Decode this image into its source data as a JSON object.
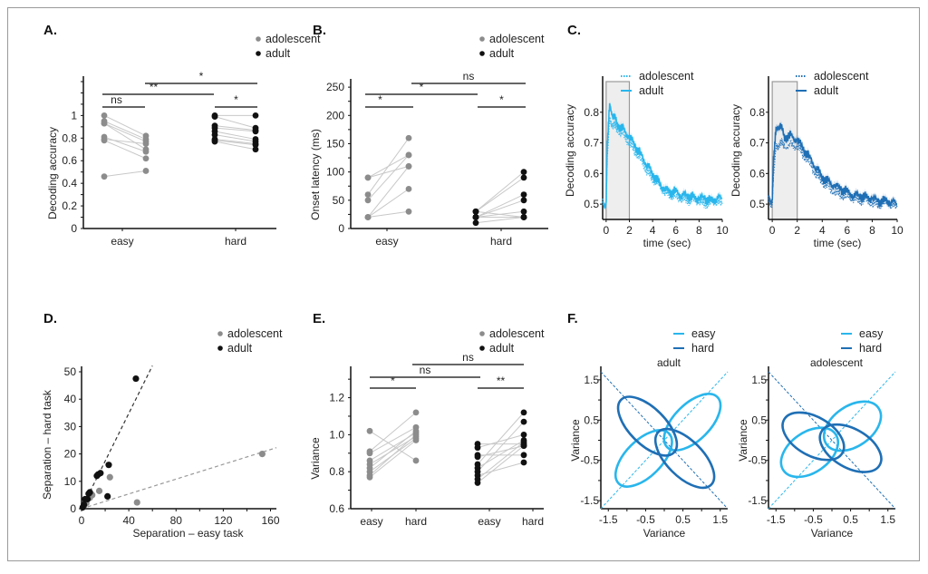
{
  "figure": {
    "legend_groups": [
      "adolescent",
      "adult"
    ],
    "colors": {
      "adolescent": "#8c8c8c",
      "adult": "#111111",
      "light_blue": "#29b6ec",
      "dark_blue": "#1f6fb5",
      "pair_line": "#c8c8c8",
      "shade": "#eeeeee"
    }
  },
  "chart_data": [
    {
      "id": "A",
      "panel_label": "A.",
      "type": "scatter",
      "subtype": "paired-dot",
      "title": "",
      "xlabel": "",
      "ylabel": "Decoding accuracy",
      "categories": [
        "easy",
        "hard"
      ],
      "ylim": [
        0,
        1.3
      ],
      "yticks": [
        0,
        0.2,
        0.4,
        0.6,
        0.8,
        1
      ],
      "ytick_labels": [
        "0",
        "0.2",
        "0.4",
        "0.6",
        "0.8",
        "1"
      ],
      "legend": [
        "adolescent",
        "adult"
      ],
      "legend_position": "top-right",
      "series": [
        {
          "name": "adolescent",
          "easy": [
            1.0,
            0.95,
            0.93,
            0.93,
            0.81,
            0.79,
            0.78,
            0.46
          ],
          "hard": [
            0.82,
            0.79,
            0.77,
            0.7,
            0.68,
            0.75,
            0.62,
            0.51
          ]
        },
        {
          "name": "adult",
          "easy": [
            1.0,
            0.99,
            0.91,
            0.89,
            0.86,
            0.83,
            0.79,
            0.78,
            0.77
          ],
          "hard": [
            1.0,
            0.89,
            0.87,
            0.86,
            0.79,
            0.77,
            0.75,
            0.74,
            0.7
          ]
        }
      ],
      "significance": [
        {
          "label": "ns",
          "from": "adolescent-easy",
          "to": "adult-easy",
          "level": 1
        },
        {
          "label": "**",
          "from": "adolescent-easy",
          "to": "adolescent-hard",
          "level": 2
        },
        {
          "label": "*",
          "from": "adult-easy",
          "to": "adult-hard",
          "level": 3
        },
        {
          "label": "*",
          "from": "adolescent-hard",
          "to": "adult-hard",
          "level": 1
        }
      ]
    },
    {
      "id": "B",
      "panel_label": "B.",
      "type": "scatter",
      "subtype": "paired-dot",
      "xlabel": "",
      "ylabel": "Onset latency (ms)",
      "categories": [
        "easy",
        "hard"
      ],
      "ylim": [
        0,
        255
      ],
      "yticks": [
        0,
        50,
        100,
        150,
        200,
        250
      ],
      "ytick_labels": [
        "0",
        "50",
        "100",
        "150",
        "200",
        "250"
      ],
      "legend": [
        "adolescent",
        "adult"
      ],
      "legend_position": "top-right",
      "series": [
        {
          "name": "adolescent",
          "easy": [
            90,
            90,
            60,
            50,
            20,
            20,
            20
          ],
          "hard": [
            130,
            110,
            160,
            130,
            110,
            70,
            30
          ]
        },
        {
          "name": "adult",
          "easy": [
            30,
            30,
            20,
            20,
            20,
            10,
            20,
            30
          ],
          "hard": [
            100,
            90,
            60,
            50,
            30,
            20,
            20,
            20
          ]
        }
      ],
      "significance": [
        {
          "label": "*",
          "from": "adolescent-easy",
          "to": "adult-easy",
          "level": 1
        },
        {
          "label": "*",
          "from": "adolescent-easy",
          "to": "adolescent-hard",
          "level": 2
        },
        {
          "label": "ns",
          "from": "adult-easy",
          "to": "adult-hard",
          "level": 3
        },
        {
          "label": "*",
          "from": "adolescent-hard",
          "to": "adult-hard",
          "level": 1
        }
      ]
    },
    {
      "id": "C1",
      "panel_label": "C.",
      "type": "line",
      "xlabel": "time (sec)",
      "ylabel": "Decoding accuracy",
      "xlim": [
        -0.3,
        10
      ],
      "ylim": [
        0.45,
        0.9
      ],
      "xticks": [
        0,
        2,
        4,
        6,
        8,
        10
      ],
      "xtick_labels": [
        "0",
        "2",
        "4",
        "6",
        "8",
        "10"
      ],
      "yticks": [
        0.5,
        0.6,
        0.7,
        0.8
      ],
      "ytick_labels": [
        "0.5",
        "0.6",
        "0.7",
        "0.8"
      ],
      "shaded_interval": [
        0,
        2
      ],
      "legend": [
        "adolescent",
        "adult"
      ],
      "legend_position": "top-right",
      "color": "#29b6ec",
      "series": [
        {
          "name": "adult",
          "style": "solid",
          "x": [
            -0.3,
            0,
            0.1,
            0.3,
            0.6,
            1,
            1.5,
            2,
            2.5,
            3,
            3.5,
            4,
            4.5,
            5,
            5.5,
            6,
            6.5,
            7,
            7.5,
            8,
            8.5,
            9,
            9.5,
            10
          ],
          "y": [
            0.5,
            0.5,
            0.7,
            0.82,
            0.79,
            0.76,
            0.74,
            0.72,
            0.69,
            0.66,
            0.63,
            0.6,
            0.57,
            0.55,
            0.54,
            0.54,
            0.53,
            0.53,
            0.52,
            0.52,
            0.52,
            0.51,
            0.52,
            0.52
          ]
        },
        {
          "name": "adolescent",
          "style": "dotted",
          "x": [
            -0.3,
            0,
            0.1,
            0.3,
            0.6,
            1,
            1.5,
            2,
            2.5,
            3,
            3.5,
            4,
            4.5,
            5,
            5.5,
            6,
            6.5,
            7,
            7.5,
            8,
            8.5,
            9,
            9.5,
            10
          ],
          "y": [
            0.5,
            0.5,
            0.66,
            0.77,
            0.76,
            0.74,
            0.72,
            0.7,
            0.67,
            0.64,
            0.61,
            0.58,
            0.56,
            0.54,
            0.53,
            0.52,
            0.52,
            0.51,
            0.51,
            0.51,
            0.5,
            0.5,
            0.51,
            0.5
          ]
        }
      ]
    },
    {
      "id": "C2",
      "panel_label": "",
      "type": "line",
      "xlabel": "time (sec)",
      "ylabel": "Decoding accuracy",
      "xlim": [
        -0.3,
        10
      ],
      "ylim": [
        0.45,
        0.9
      ],
      "xticks": [
        0,
        2,
        4,
        6,
        8,
        10
      ],
      "xtick_labels": [
        "0",
        "2",
        "4",
        "6",
        "8",
        "10"
      ],
      "yticks": [
        0.5,
        0.6,
        0.7,
        0.8
      ],
      "ytick_labels": [
        "0.5",
        "0.6",
        "0.7",
        "0.8"
      ],
      "shaded_interval": [
        0,
        2
      ],
      "legend": [
        "adolescent",
        "adult"
      ],
      "legend_position": "top-right",
      "color": "#1f6fb5",
      "series": [
        {
          "name": "adult",
          "style": "solid",
          "x": [
            -0.3,
            0,
            0.1,
            0.3,
            0.6,
            1,
            1.5,
            2,
            2.5,
            3,
            3.5,
            4,
            4.5,
            5,
            5.5,
            6,
            6.5,
            7,
            7.5,
            8,
            8.5,
            9,
            9.5,
            10
          ],
          "y": [
            0.52,
            0.51,
            0.65,
            0.74,
            0.76,
            0.72,
            0.72,
            0.71,
            0.68,
            0.65,
            0.62,
            0.59,
            0.57,
            0.56,
            0.55,
            0.54,
            0.53,
            0.53,
            0.52,
            0.52,
            0.51,
            0.51,
            0.51,
            0.5
          ]
        },
        {
          "name": "adolescent",
          "style": "dotted",
          "x": [
            -0.3,
            0,
            0.1,
            0.3,
            0.6,
            1,
            1.5,
            2,
            2.5,
            3,
            3.5,
            4,
            4.5,
            5,
            5.5,
            6,
            6.5,
            7,
            7.5,
            8,
            8.5,
            9,
            9.5,
            10
          ],
          "y": [
            0.51,
            0.5,
            0.6,
            0.68,
            0.7,
            0.69,
            0.69,
            0.69,
            0.66,
            0.63,
            0.6,
            0.57,
            0.55,
            0.54,
            0.53,
            0.52,
            0.52,
            0.51,
            0.51,
            0.5,
            0.5,
            0.5,
            0.5,
            0.49
          ]
        }
      ]
    },
    {
      "id": "D",
      "panel_label": "D.",
      "type": "scatter",
      "xlabel": "Separation – easy task",
      "ylabel": "Separation – hard task",
      "xlim": [
        0,
        165
      ],
      "ylim": [
        0,
        50
      ],
      "xticks": [
        0,
        40,
        80,
        120,
        160
      ],
      "xtick_labels": [
        "0",
        "40",
        "80",
        "120",
        "160"
      ],
      "yticks": [
        0,
        10,
        20,
        30,
        40,
        50
      ],
      "ytick_labels": [
        "0",
        "10",
        "20",
        "30",
        "40",
        "50"
      ],
      "legend": [
        "adolescent",
        "adult"
      ],
      "legend_position": "top-right",
      "series": [
        {
          "name": "adolescent",
          "x": [
            153,
            24,
            15,
            9,
            7,
            4,
            47,
            2
          ],
          "y": [
            20,
            11.5,
            6.5,
            5,
            4,
            2,
            2.3,
            1
          ],
          "fit_slope": 0.135
        },
        {
          "name": "adult",
          "x": [
            46,
            23,
            16,
            14,
            13,
            7,
            6,
            5,
            3,
            2,
            1,
            22
          ],
          "y": [
            47.5,
            16,
            13,
            12.5,
            12,
            6,
            5.5,
            3.5,
            3.5,
            1.5,
            0.5,
            4.5
          ],
          "fit_slope": 0.87
        }
      ]
    },
    {
      "id": "E",
      "panel_label": "E.",
      "type": "scatter",
      "subtype": "paired-dot",
      "xlabel": "",
      "ylabel": "Variance",
      "categories": [
        "easy",
        "hard",
        "easy",
        "hard"
      ],
      "ylim": [
        0.6,
        1.34
      ],
      "yticks": [
        0.6,
        0.8,
        1.0,
        1.2
      ],
      "ytick_labels": [
        "0.6",
        "0.8",
        "1.0",
        "1.2"
      ],
      "legend": [
        "adolescent",
        "adult"
      ],
      "legend_position": "top-right",
      "series": [
        {
          "name": "adolescent",
          "easy": [
            1.02,
            0.91,
            0.9,
            0.86,
            0.84,
            0.82,
            0.8,
            0.78,
            0.77
          ],
          "hard": [
            0.86,
            1.12,
            1.04,
            1.01,
            0.99,
            1.02,
            0.98,
            1.0,
            0.97
          ]
        },
        {
          "name": "adult",
          "easy": [
            0.95,
            0.93,
            0.89,
            0.88,
            0.84,
            0.82,
            0.8,
            0.78,
            0.76,
            0.74
          ],
          "hard": [
            0.95,
            1.0,
            0.89,
            0.94,
            1.12,
            0.97,
            1.07,
            0.85,
            0.96,
            0.94
          ]
        }
      ],
      "significance": [
        {
          "label": "*",
          "from": "adolescent-easy",
          "to": "adolescent-hard",
          "level": 1
        },
        {
          "label": "ns",
          "from": "adolescent-easy",
          "to": "adult-easy",
          "level": 2
        },
        {
          "label": "ns",
          "from": "adolescent-hard",
          "to": "adult-hard",
          "level": 3
        },
        {
          "label": "**",
          "from": "adult-easy",
          "to": "adult-hard",
          "level": 1
        }
      ]
    },
    {
      "id": "F1",
      "panel_label": "F.",
      "type": "line",
      "subtype": "ellipse",
      "title": "adult",
      "xlabel": "Variance",
      "ylabel": "Variance",
      "xlim": [
        -1.7,
        1.7
      ],
      "ylim": [
        -1.7,
        1.7
      ],
      "xticks": [
        -1.5,
        -0.5,
        0.5,
        1.5
      ],
      "xtick_labels": [
        "-1.5",
        "-0.5",
        "0.5",
        "1.5"
      ],
      "yticks": [
        -1.5,
        -0.5,
        0.5,
        1.5
      ],
      "ytick_labels": [
        "-1.5",
        "-0.5",
        "0.5",
        "1.5"
      ],
      "legend": [
        "easy",
        "hard"
      ],
      "legend_position": "top-right",
      "diagonals": [
        {
          "slope": 1,
          "color": "#29b6ec"
        },
        {
          "slope": -1,
          "color": "#1f6fb5"
        }
      ],
      "ellipses": [
        {
          "name": "easy",
          "cx": -0.55,
          "cy": -0.45,
          "rx": 0.95,
          "ry": 0.45,
          "angle_deg": -45
        },
        {
          "name": "easy",
          "cx": 0.75,
          "cy": 0.45,
          "rx": 0.95,
          "ry": 0.45,
          "angle_deg": -45
        },
        {
          "name": "hard",
          "cx": -0.45,
          "cy": 0.35,
          "rx": 1.0,
          "ry": 0.45,
          "angle_deg": 45
        },
        {
          "name": "hard",
          "cx": 0.55,
          "cy": -0.45,
          "rx": 1.0,
          "ry": 0.45,
          "angle_deg": 45
        }
      ]
    },
    {
      "id": "F2",
      "panel_label": "",
      "type": "line",
      "subtype": "ellipse",
      "title": "adolescent",
      "xlabel": "Variance",
      "ylabel": "Variance",
      "xlim": [
        -1.7,
        1.7
      ],
      "ylim": [
        -1.7,
        1.7
      ],
      "xticks": [
        -1.5,
        -0.5,
        0.5,
        1.5
      ],
      "xtick_labels": [
        "-1.5",
        "-0.5",
        "0.5",
        "1.5"
      ],
      "yticks": [
        -1.5,
        -0.5,
        0.5,
        1.5
      ],
      "ytick_labels": [
        "-1.5",
        "-0.5",
        "0.5",
        "1.5"
      ],
      "legend": [
        "easy",
        "hard"
      ],
      "legend_position": "top-right",
      "diagonals": [
        {
          "slope": 1,
          "color": "#29b6ec"
        },
        {
          "slope": -1,
          "color": "#1f6fb5"
        }
      ],
      "ellipses": [
        {
          "name": "easy",
          "cx": -0.6,
          "cy": -0.3,
          "rx": 0.85,
          "ry": 0.5,
          "angle_deg": -35
        },
        {
          "name": "easy",
          "cx": 0.55,
          "cy": 0.35,
          "rx": 0.85,
          "ry": 0.5,
          "angle_deg": -35
        },
        {
          "name": "hard",
          "cx": -0.5,
          "cy": 0.1,
          "rx": 0.9,
          "ry": 0.48,
          "angle_deg": 30
        },
        {
          "name": "hard",
          "cx": 0.5,
          "cy": -0.2,
          "rx": 0.9,
          "ry": 0.48,
          "angle_deg": 30
        }
      ]
    }
  ]
}
